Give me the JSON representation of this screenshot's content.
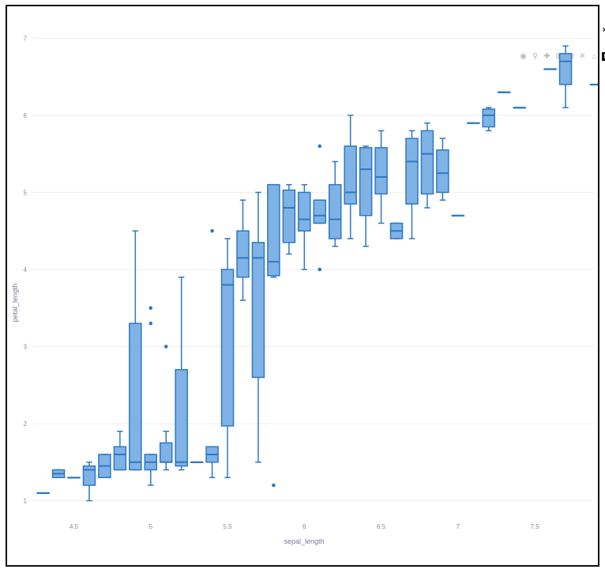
{
  "toolbar": {
    "icons": [
      "camera-icon",
      "zoom-icon",
      "pan-icon",
      "zoom-in-icon",
      "zoom-out-icon",
      "autoscale-icon",
      "home-icon",
      "plotly-logo-icon"
    ],
    "corner_icon": "xᵪ"
  },
  "colors": {
    "box_fill": "#7fb2e5",
    "box_line": "#2f78c4",
    "grid": "#eeeeee"
  },
  "chart_data": {
    "type": "box",
    "title": "",
    "xlabel": "sepal_length",
    "ylabel": "petal_length",
    "xlim": [
      4.23,
      7.89
    ],
    "ylim": [
      0.8,
      7.25
    ],
    "xticks": [
      4.5,
      5,
      5.5,
      6,
      6.5,
      7,
      7.5
    ],
    "xtick_labels": [
      "4.5",
      "5",
      "5.5",
      "6",
      "6.5",
      "7",
      "7.5"
    ],
    "yticks": [
      1,
      2,
      3,
      4,
      5,
      6,
      7
    ],
    "ytick_labels": [
      "1",
      "2",
      "3",
      "4",
      "5",
      "6",
      "7"
    ],
    "grid": true,
    "boxes": [
      {
        "x": 4.3,
        "min": 1.1,
        "q1": 1.1,
        "median": 1.1,
        "q3": 1.1,
        "max": 1.1,
        "outliers": []
      },
      {
        "x": 4.4,
        "min": 1.3,
        "q1": 1.3,
        "median": 1.35,
        "q3": 1.4,
        "max": 1.4,
        "outliers": []
      },
      {
        "x": 4.5,
        "min": 1.3,
        "q1": 1.3,
        "median": 1.3,
        "q3": 1.3,
        "max": 1.3,
        "outliers": []
      },
      {
        "x": 4.6,
        "min": 1.0,
        "q1": 1.2,
        "median": 1.4,
        "q3": 1.45,
        "max": 1.5,
        "outliers": []
      },
      {
        "x": 4.7,
        "min": 1.3,
        "q1": 1.3,
        "median": 1.45,
        "q3": 1.6,
        "max": 1.6,
        "outliers": []
      },
      {
        "x": 4.8,
        "min": 1.4,
        "q1": 1.4,
        "median": 1.6,
        "q3": 1.7,
        "max": 1.9,
        "outliers": []
      },
      {
        "x": 4.9,
        "min": 1.4,
        "q1": 1.4,
        "median": 1.5,
        "q3": 3.3,
        "max": 4.5,
        "outliers": []
      },
      {
        "x": 5.0,
        "min": 1.2,
        "q1": 1.4,
        "median": 1.5,
        "q3": 1.6,
        "max": 1.6,
        "outliers": [
          3.5,
          3.3
        ]
      },
      {
        "x": 5.1,
        "min": 1.4,
        "q1": 1.5,
        "median": 1.5,
        "q3": 1.75,
        "max": 1.9,
        "outliers": [
          3.0
        ]
      },
      {
        "x": 5.2,
        "min": 1.4,
        "q1": 1.45,
        "median": 1.5,
        "q3": 2.7,
        "max": 3.9,
        "outliers": []
      },
      {
        "x": 5.3,
        "min": 1.5,
        "q1": 1.5,
        "median": 1.5,
        "q3": 1.5,
        "max": 1.5,
        "outliers": []
      },
      {
        "x": 5.4,
        "min": 1.3,
        "q1": 1.5,
        "median": 1.6,
        "q3": 1.7,
        "max": 1.7,
        "outliers": [
          4.5
        ]
      },
      {
        "x": 5.5,
        "min": 1.3,
        "q1": 1.97,
        "median": 3.8,
        "q3": 4.0,
        "max": 4.4,
        "outliers": []
      },
      {
        "x": 5.6,
        "min": 3.6,
        "q1": 3.9,
        "median": 4.15,
        "q3": 4.5,
        "max": 4.9,
        "outliers": []
      },
      {
        "x": 5.7,
        "min": 1.5,
        "q1": 2.6,
        "median": 4.15,
        "q3": 4.35,
        "max": 5.0,
        "outliers": []
      },
      {
        "x": 5.8,
        "min": 3.9,
        "q1": 3.92,
        "median": 4.1,
        "q3": 5.1,
        "max": 5.1,
        "outliers": [
          1.2
        ]
      },
      {
        "x": 5.9,
        "min": 4.2,
        "q1": 4.35,
        "median": 4.8,
        "q3": 5.03,
        "max": 5.1,
        "outliers": []
      },
      {
        "x": 6.0,
        "min": 4.0,
        "q1": 4.5,
        "median": 4.65,
        "q3": 5.0,
        "max": 5.1,
        "outliers": []
      },
      {
        "x": 6.1,
        "min": 4.6,
        "q1": 4.6,
        "median": 4.7,
        "q3": 4.9,
        "max": 4.9,
        "outliers": [
          5.6,
          4.0
        ]
      },
      {
        "x": 6.2,
        "min": 4.3,
        "q1": 4.4,
        "median": 4.65,
        "q3": 5.1,
        "max": 5.4,
        "outliers": []
      },
      {
        "x": 6.3,
        "min": 4.4,
        "q1": 4.85,
        "median": 5.0,
        "q3": 5.6,
        "max": 6.0,
        "outliers": []
      },
      {
        "x": 6.4,
        "min": 4.3,
        "q1": 4.7,
        "median": 5.3,
        "q3": 5.58,
        "max": 5.6,
        "outliers": []
      },
      {
        "x": 6.5,
        "min": 4.6,
        "q1": 4.98,
        "median": 5.2,
        "q3": 5.58,
        "max": 5.8,
        "outliers": []
      },
      {
        "x": 6.6,
        "min": 4.4,
        "q1": 4.4,
        "median": 4.5,
        "q3": 4.6,
        "max": 4.6,
        "outliers": []
      },
      {
        "x": 6.7,
        "min": 4.4,
        "q1": 4.85,
        "median": 5.4,
        "q3": 5.7,
        "max": 5.8,
        "outliers": []
      },
      {
        "x": 6.8,
        "min": 4.8,
        "q1": 4.98,
        "median": 5.5,
        "q3": 5.8,
        "max": 5.9,
        "outliers": []
      },
      {
        "x": 6.9,
        "min": 4.9,
        "q1": 5.0,
        "median": 5.25,
        "q3": 5.55,
        "max": 5.7,
        "outliers": []
      },
      {
        "x": 7.0,
        "min": 4.7,
        "q1": 4.7,
        "median": 4.7,
        "q3": 4.7,
        "max": 4.7,
        "outliers": []
      },
      {
        "x": 7.1,
        "min": 5.9,
        "q1": 5.9,
        "median": 5.9,
        "q3": 5.9,
        "max": 5.9,
        "outliers": []
      },
      {
        "x": 7.2,
        "min": 5.8,
        "q1": 5.85,
        "median": 6.0,
        "q3": 6.08,
        "max": 6.1,
        "outliers": []
      },
      {
        "x": 7.3,
        "min": 6.3,
        "q1": 6.3,
        "median": 6.3,
        "q3": 6.3,
        "max": 6.3,
        "outliers": []
      },
      {
        "x": 7.4,
        "min": 6.1,
        "q1": 6.1,
        "median": 6.1,
        "q3": 6.1,
        "max": 6.1,
        "outliers": []
      },
      {
        "x": 7.6,
        "min": 6.6,
        "q1": 6.6,
        "median": 6.6,
        "q3": 6.6,
        "max": 6.6,
        "outliers": []
      },
      {
        "x": 7.7,
        "min": 6.1,
        "q1": 6.4,
        "median": 6.7,
        "q3": 6.8,
        "max": 6.9,
        "outliers": []
      },
      {
        "x": 7.9,
        "min": 6.4,
        "q1": 6.4,
        "median": 6.4,
        "q3": 6.4,
        "max": 6.4,
        "outliers": []
      }
    ]
  }
}
